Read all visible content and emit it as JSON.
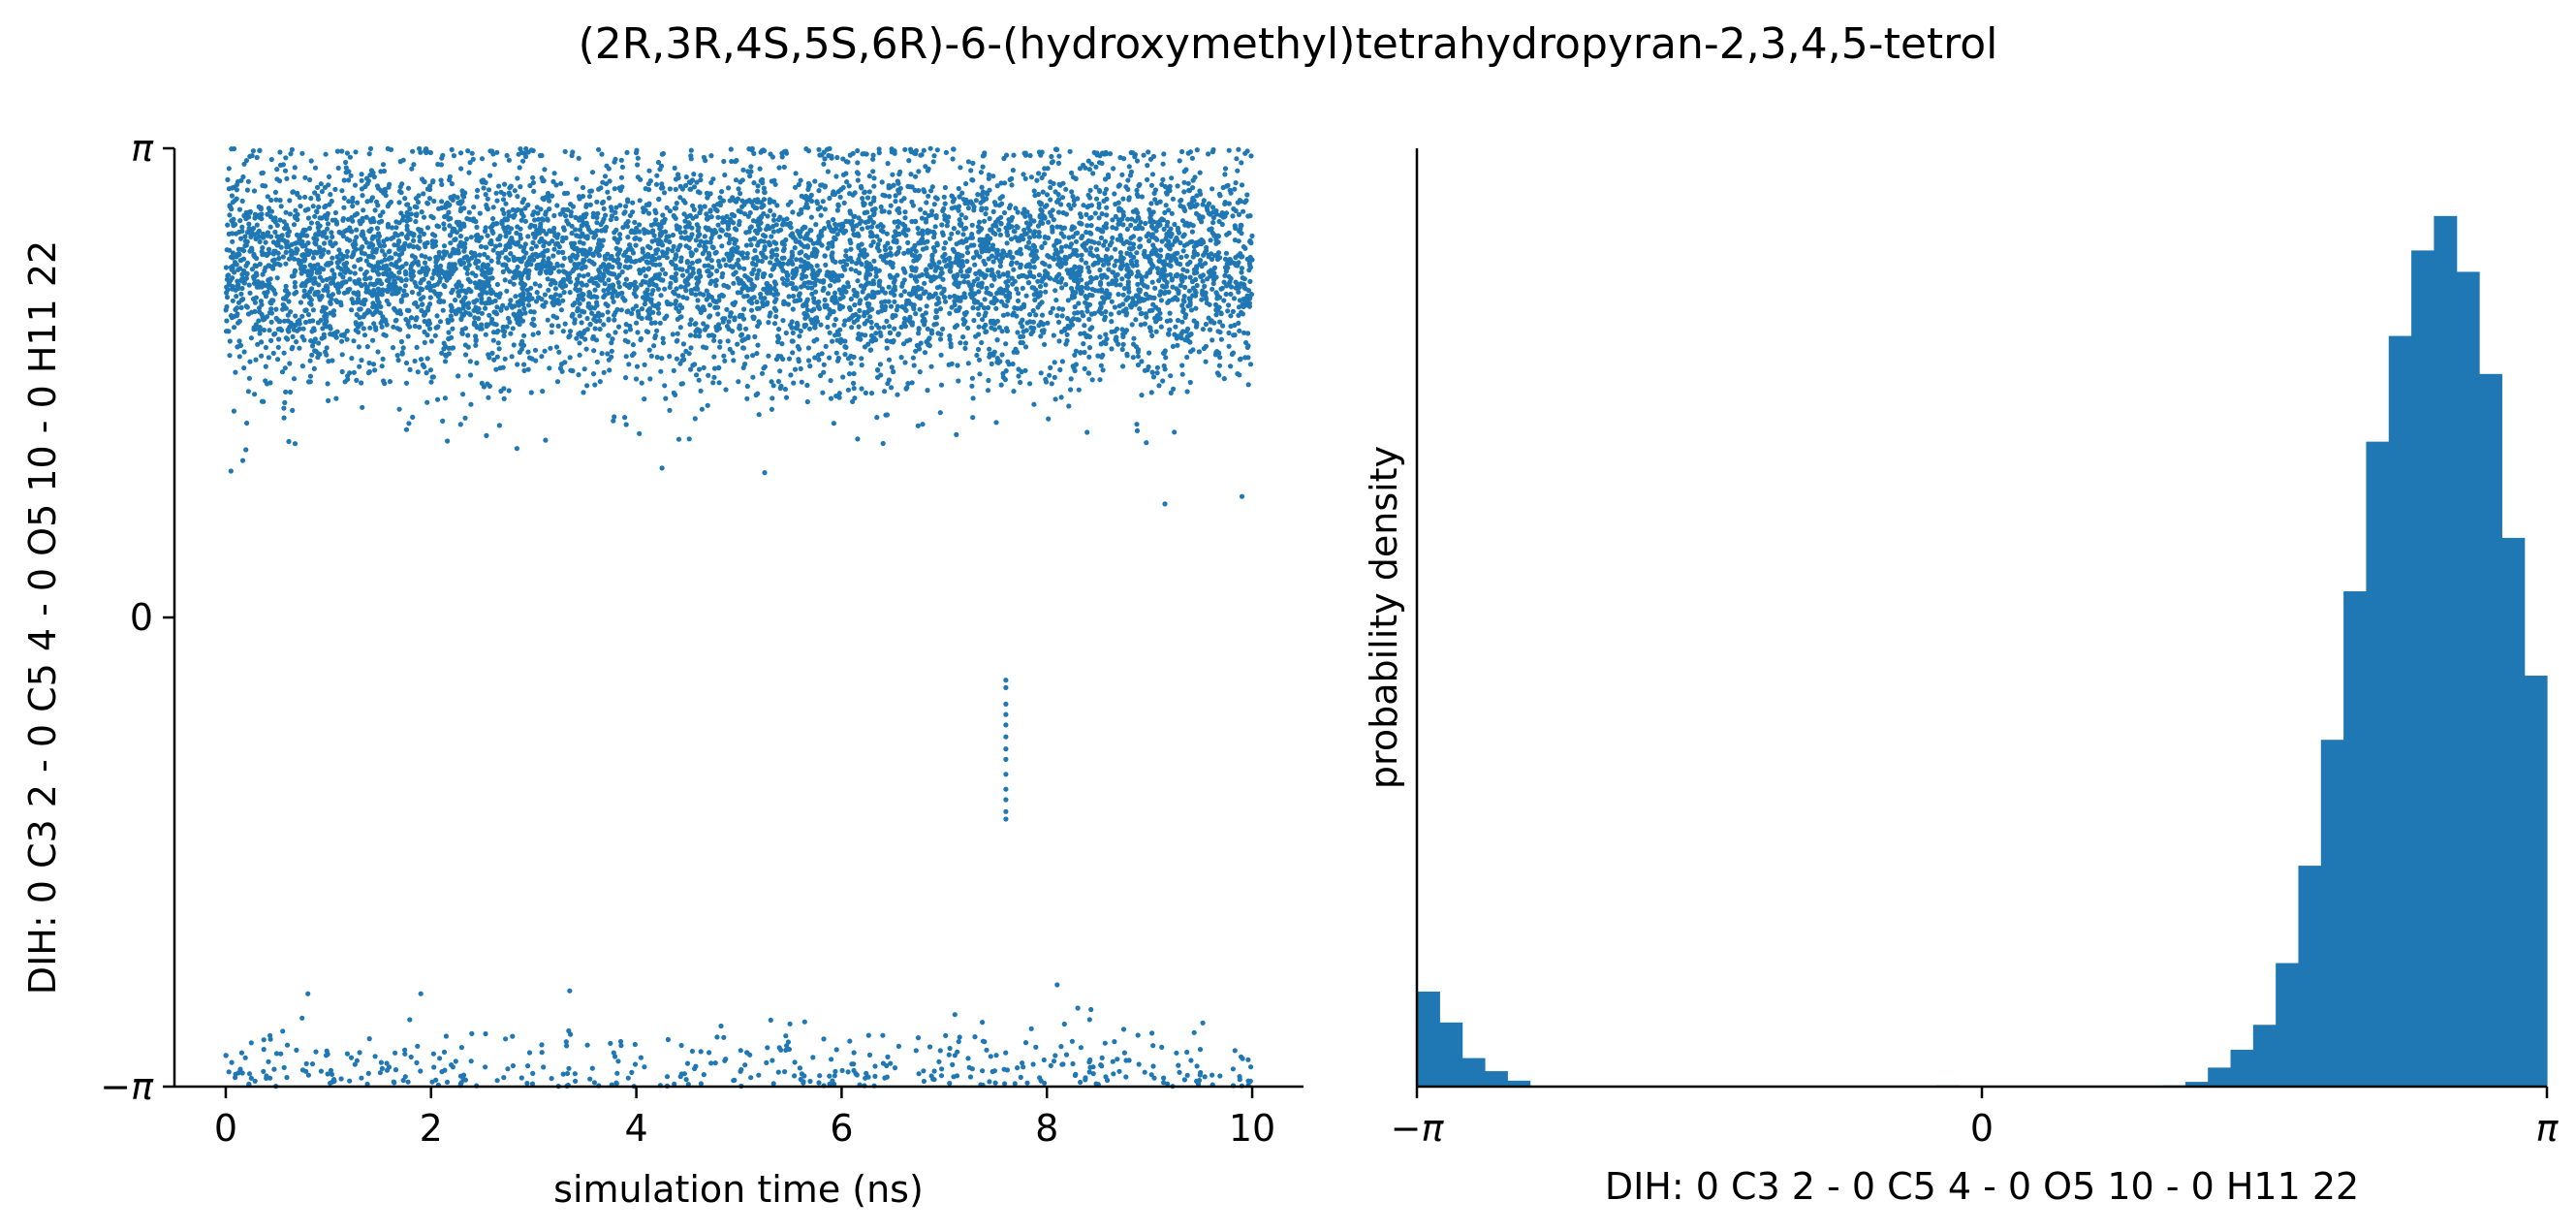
{
  "title": "(2R,3R,4S,5S,6R)-6-(hydroxymethyl)tetrahydropyran-2,3,4,5-tetrol",
  "colors": {
    "series": "#1f77b4",
    "axis": "#000000"
  },
  "chart_data": [
    {
      "type": "scatter",
      "xlabel": "simulation time (ns)",
      "ylabel": "DIH:  0 C3 2 -  0 C5 4 -  0 O5 10 -  0 H11 22",
      "xlim": [
        -0.5,
        10.5
      ],
      "ylim": [
        -3.14159,
        3.14159
      ],
      "x_ticks": [
        0,
        2,
        4,
        6,
        8,
        10
      ],
      "x_tick_labels": [
        "0",
        "2",
        "4",
        "6",
        "8",
        "10"
      ],
      "y_ticks": [
        -3.14159,
        0,
        3.14159
      ],
      "y_tick_labels": [
        "−π",
        "0",
        "π"
      ],
      "grid": false,
      "series": [
        {
          "clusters": [
            {
              "x_range": [
                0,
                10
              ],
              "y_center": 2.35,
              "y_spread": 0.38,
              "y_max": 3.14,
              "y_min": 1.0,
              "count": 6500
            },
            {
              "x_range": [
                0,
                10
              ],
              "y_center": -3.14,
              "y_spread": 0.18,
              "y_max": -2.55,
              "y_min": -3.14,
              "count": 420
            }
          ],
          "transition": {
            "x": 7.6,
            "y_values": [
              -0.42,
              -0.47,
              -0.58,
              -0.65,
              -0.72,
              -0.8,
              -0.88,
              -0.95,
              -1.05,
              -1.15,
              -1.22,
              -1.3,
              -1.35
            ]
          },
          "outliers": [
            {
              "x": 0.05,
              "y": 0.98
            },
            {
              "x": 5.25,
              "y": 0.97
            },
            {
              "x": 4.25,
              "y": 1.0
            },
            {
              "x": 9.15,
              "y": 0.76
            },
            {
              "x": 9.9,
              "y": 0.81
            },
            {
              "x": 8.1,
              "y": -2.46
            },
            {
              "x": 3.35,
              "y": -2.5
            },
            {
              "x": 1.9,
              "y": -2.52
            },
            {
              "x": 0.8,
              "y": -2.52
            }
          ]
        }
      ]
    },
    {
      "type": "histogram",
      "xlabel": "DIH:  0 C3 2 -  0 C5 4 -  0 O5 10 -  0 H11 22",
      "ylabel": "probability density",
      "xlim": [
        -3.14159,
        3.14159
      ],
      "x_ticks": [
        -3.14159,
        0,
        3.14159
      ],
      "x_tick_labels": [
        "−π",
        "0",
        "π"
      ],
      "bins": 50,
      "bin_range": [
        -3.14159,
        3.14159
      ],
      "density": [
        0.08,
        0.054,
        0.024,
        0.013,
        0.005,
        0,
        0,
        0,
        0,
        0,
        0,
        0,
        0,
        0,
        0,
        0,
        0,
        0,
        0,
        0,
        0,
        0,
        0,
        0.001,
        0,
        0,
        0,
        0,
        0,
        0,
        0,
        0,
        0,
        0.001,
        0.004,
        0.016,
        0.031,
        0.052,
        0.104,
        0.186,
        0.292,
        0.417,
        0.543,
        0.632,
        0.704,
        0.733,
        0.686,
        0.6,
        0.462,
        0.346
      ],
      "ylim": [
        0,
        0.79
      ]
    }
  ]
}
